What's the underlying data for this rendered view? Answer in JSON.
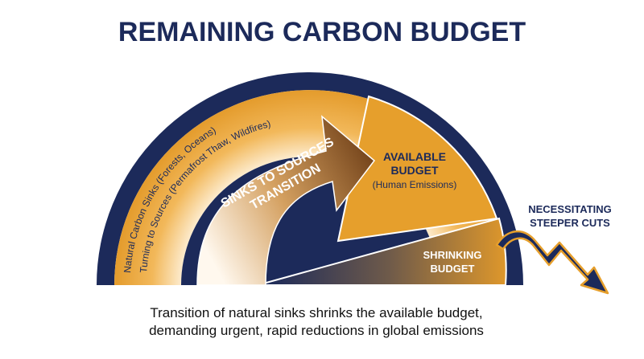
{
  "header": {
    "title": "REMAINING CARBON BUDGET"
  },
  "arc_labels": [
    "Natural Carbon Sinks (Forests, Oceans)",
    "Turning to Sources (Permafrost Thaw, Wildfires)"
  ],
  "arrow_label": [
    "SINKS TO SOURCES",
    "TRANSITION"
  ],
  "available_budget": {
    "title": [
      "AVAILABLE",
      "BUDGET"
    ],
    "subtitle": "(Human Emissions)"
  },
  "shrinking_budget": [
    "SHRINKING",
    "BUDGET"
  ],
  "side_note": [
    "NECESSITATING",
    "STEEPER CUTS"
  ],
  "caption": [
    "Transition of natural sinks shrinks the available budget,",
    "demanding urgent, rapid reductions in global emissions"
  ]
}
